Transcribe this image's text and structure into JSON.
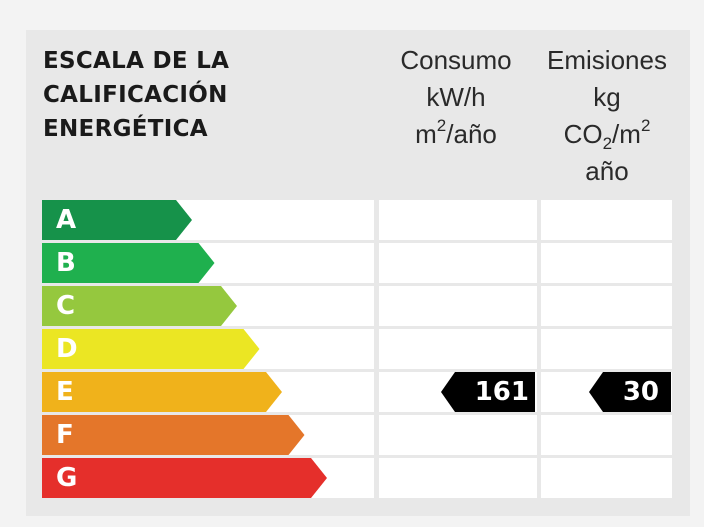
{
  "header": {
    "title_lines": [
      "ESCALA DE LA",
      "CALIFICACIÓN",
      "ENERGÉTICA"
    ],
    "consumo": {
      "line1": "Consumo",
      "line2": "kW/h",
      "line3_base": "m",
      "line3_sup": "2",
      "line3_rest": "/año"
    },
    "emisiones": {
      "line1": "Emisiones",
      "line2": "kg",
      "line3_base": "CO",
      "line3_sub": "2",
      "line3_mid": "/m",
      "line3_sup": "2",
      "line4": "año"
    }
  },
  "ratings": [
    {
      "letter": "A",
      "color": "#16924a",
      "level": 1
    },
    {
      "letter": "B",
      "color": "#1fb04e",
      "level": 2
    },
    {
      "letter": "C",
      "color": "#95c83e",
      "level": 3
    },
    {
      "letter": "D",
      "color": "#ebe623",
      "level": 4
    },
    {
      "letter": "E",
      "color": "#f0b21b",
      "level": 5
    },
    {
      "letter": "F",
      "color": "#e4762a",
      "level": 6
    },
    {
      "letter": "G",
      "color": "#e52f2b",
      "level": 7
    }
  ],
  "current": {
    "rating": "E",
    "consumo_value": "161",
    "emisiones_value": "30",
    "marker_color": "#000000"
  }
}
